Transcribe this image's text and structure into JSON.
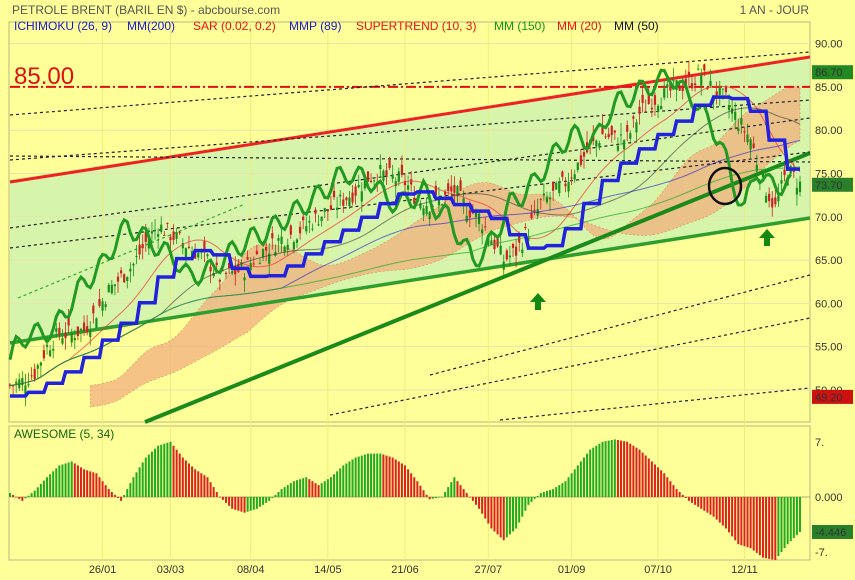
{
  "chart_data": [
    {
      "type": "line",
      "title": "PETROLE BRENT (BARIL EN $) - abcbourse.com",
      "period": "1 AN - JOUR",
      "legend": [
        {
          "label": "ICHIMOKU (26, 9)",
          "color": "#1a1acc"
        },
        {
          "label": "MM(200)",
          "color": "#1a1acc"
        },
        {
          "label": "SAR (0.02, 0.2)",
          "color": "#ee1111"
        },
        {
          "label": "MMP (89)",
          "color": "#1a1acc"
        },
        {
          "label": "SUPERTREND (10, 3)",
          "color": "#ee1111"
        },
        {
          "label": "MM (150)",
          "color": "#119911"
        },
        {
          "label": "MM (20)",
          "color": "#ee1111"
        },
        {
          "label": "MM (50)",
          "color": "#111111"
        }
      ],
      "x_ticks": [
        "26/01",
        "03/03",
        "08/04",
        "14/05",
        "21/06",
        "27/07",
        "01/09",
        "07/10",
        "12/11"
      ],
      "y_ticks": [
        50.0,
        55.0,
        60.0,
        65.0,
        70.0,
        75.0,
        80.0,
        85.0,
        90.0
      ],
      "ylim": [
        46.3,
        92.5
      ],
      "level_annotation": "85.00",
      "badges": [
        {
          "label": "86.70",
          "value": 86.7,
          "color": "#228822"
        },
        {
          "label": "73.70",
          "value": 73.7,
          "color": "#2a7f2a"
        },
        {
          "label": "49.20",
          "value": 49.2,
          "color": "#cc1111"
        }
      ],
      "series": [
        {
          "name": "price",
          "x": [
            0,
            4,
            8,
            12,
            16,
            20,
            24,
            28,
            32,
            36,
            40,
            44,
            48,
            52,
            56,
            60,
            64,
            68,
            72,
            76,
            80,
            84,
            88,
            92,
            96,
            100,
            104,
            108,
            112,
            116,
            120,
            124,
            128,
            132,
            136,
            140,
            144,
            148,
            152,
            156,
            160,
            164,
            168,
            172,
            176,
            180,
            184,
            188,
            192,
            196,
            200,
            204,
            208,
            212,
            216,
            220,
            224,
            228,
            232,
            236,
            240,
            244,
            248,
            252,
            256
          ],
          "y": [
            50.5,
            51,
            52,
            55,
            56.5,
            56.5,
            57,
            59,
            61.5,
            63,
            64.5,
            67,
            69,
            68,
            67,
            66,
            65,
            63,
            63.5,
            64,
            65.5,
            66.5,
            67.5,
            68,
            69,
            70,
            71,
            72,
            73,
            74.5,
            75,
            74.5,
            74,
            72,
            71.5,
            72,
            73,
            71,
            70,
            67.5,
            65,
            66,
            68.5,
            71.5,
            72.5,
            74,
            76,
            78,
            79.5,
            79,
            79,
            82,
            83.5,
            84,
            85,
            85.5,
            86.5,
            84.5,
            83.5,
            81,
            79,
            74,
            71,
            75.5,
            73.7
          ]
        }
      ]
    },
    {
      "type": "bar",
      "title": "AWESOME (5, 34)",
      "y_ticks": [
        -7.0,
        0.0,
        7.0
      ],
      "ylim": [
        -8.0,
        9.0
      ],
      "badge": {
        "label": "-4.446",
        "value": -4.446,
        "color": "#2a7f2a"
      },
      "series": [
        {
          "name": "AO",
          "x": [
            0,
            4,
            8,
            12,
            16,
            20,
            24,
            28,
            32,
            36,
            40,
            44,
            48,
            52,
            56,
            60,
            64,
            68,
            72,
            76,
            80,
            84,
            88,
            92,
            96,
            100,
            104,
            108,
            112,
            116,
            120,
            124,
            128,
            132,
            136,
            140,
            144,
            148,
            152,
            156,
            160,
            164,
            168,
            172,
            176,
            180,
            184,
            188,
            192,
            196,
            200,
            204,
            208,
            212,
            216,
            220,
            224,
            228,
            232,
            236,
            240,
            244,
            248,
            252,
            256
          ],
          "y": [
            0.5,
            -0.5,
            0.8,
            2.5,
            4,
            4.5,
            3.5,
            3,
            1,
            -0.5,
            2.5,
            5,
            6.5,
            7,
            5,
            3.5,
            2.5,
            0,
            -1.5,
            -2,
            -1.5,
            -0.5,
            1,
            2,
            2.5,
            1.5,
            2.5,
            4,
            5,
            5.5,
            5.5,
            5,
            4,
            2,
            -0.3,
            0,
            2.5,
            0.5,
            -1.5,
            -4,
            -5.5,
            -4,
            -1,
            0.5,
            1,
            2,
            4,
            6,
            7,
            7.3,
            7,
            6,
            4.5,
            3,
            1,
            -0.5,
            -1.5,
            -2.5,
            -4,
            -6,
            -6.5,
            -7.7,
            -8,
            -6,
            -4.446
          ]
        }
      ]
    }
  ]
}
